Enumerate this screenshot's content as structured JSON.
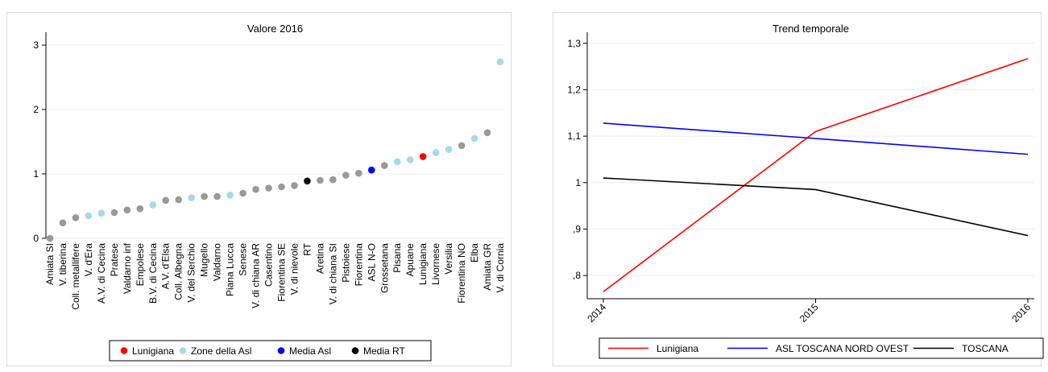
{
  "chart_data": [
    {
      "type": "scatter",
      "title": "Valore 2016",
      "xlabel": "",
      "ylabel": "",
      "ylim": [
        0,
        3.1
      ],
      "yticks": [
        0,
        1,
        2,
        3
      ],
      "ytick_labels": [
        "0",
        "1",
        "2",
        "3"
      ],
      "grid": true,
      "legend_position": "bottom",
      "categories": [
        "Amiata SI",
        "V. tiberina",
        "Coll. metallifere",
        "V. d'Era",
        "A.V. di Cecina",
        "Pratese",
        "Valdarno inf",
        "Empolese",
        "B.V. di Cecina",
        "A.V. d'Elsa",
        "Coll. Albegna",
        "V. del Serchio",
        "Mugello",
        "Valdarno",
        "Piana Lucca",
        "Senese",
        "V. di chiana AR",
        "Casentino",
        "Fiorentina SE",
        "V. di nievole",
        "RT",
        "Aretina",
        "V. di chiana SI",
        "Pistoiese",
        "Fiorentina",
        "ASL N-O",
        "Grossetana",
        "Pisana",
        "Apuane",
        "Lunigiana",
        "Livornese",
        "Versilia",
        "Fiorentina NO",
        "Elba",
        "Amiata GR",
        "V. di Cornia"
      ],
      "values": [
        0.0,
        0.24,
        0.32,
        0.35,
        0.39,
        0.4,
        0.44,
        0.46,
        0.52,
        0.59,
        0.6,
        0.63,
        0.65,
        0.65,
        0.67,
        0.7,
        0.76,
        0.78,
        0.8,
        0.82,
        0.89,
        0.9,
        0.91,
        0.98,
        1.01,
        1.06,
        1.13,
        1.19,
        1.22,
        1.27,
        1.33,
        1.38,
        1.44,
        1.55,
        1.64,
        2.74
      ],
      "groups": [
        "other",
        "other",
        "other",
        "zone",
        "zone",
        "other",
        "other",
        "other",
        "zone",
        "other",
        "other",
        "zone",
        "other",
        "other",
        "zone",
        "other",
        "other",
        "other",
        "other",
        "other",
        "rt",
        "other",
        "other",
        "other",
        "other",
        "asl",
        "other",
        "zone",
        "zone",
        "lunigiana",
        "zone",
        "zone",
        "other",
        "zone",
        "other",
        "zone"
      ],
      "group_colors": {
        "other": "#999999",
        "zone": "#a6d9ea",
        "asl": "#0000ff",
        "rt": "#000000",
        "lunigiana": "#ff0000"
      },
      "legend": [
        {
          "label": "Lunigiana",
          "color": "#ff0000"
        },
        {
          "label": "Zone della Asl",
          "color": "#a6d9ea"
        },
        {
          "label": "Media Asl",
          "color": "#0000ff"
        },
        {
          "label": "Media RT",
          "color": "#000000"
        }
      ]
    },
    {
      "type": "line",
      "title": "Trend temporale",
      "xlabel": "",
      "ylabel": "",
      "x": [
        2014,
        2015,
        2016
      ],
      "xtick_labels": [
        "2014",
        "2015",
        "2016"
      ],
      "ylim": [
        0.75,
        1.31
      ],
      "yticks": [
        0.8,
        0.9,
        1.0,
        1.1,
        1.2,
        1.3
      ],
      "ytick_labels": [
        ",8",
        ",9",
        "1",
        "1,1",
        "1,2",
        "1,3"
      ],
      "grid": true,
      "legend_position": "bottom",
      "series": [
        {
          "name": "Lunigiana",
          "color": "#ff0000",
          "values": [
            0.765,
            1.11,
            1.267
          ]
        },
        {
          "name": "ASL TOSCANA NORD OVEST",
          "color": "#0000ff",
          "values": [
            1.128,
            1.095,
            1.061
          ]
        },
        {
          "name": "TOSCANA",
          "color": "#000000",
          "values": [
            1.01,
            0.985,
            0.886
          ]
        }
      ]
    }
  ]
}
